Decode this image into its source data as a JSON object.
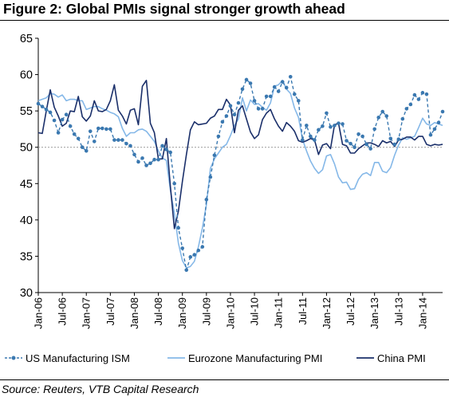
{
  "header": {
    "title": "Figure 2: Global PMIs signal stronger growth ahead"
  },
  "footer": {
    "source": "Source: Reuters, VTB Capital Research"
  },
  "chart_data": {
    "type": "line",
    "y_ticks": [
      "30",
      "35",
      "40",
      "45",
      "50",
      "55",
      "60",
      "65"
    ],
    "ylim": [
      30,
      65
    ],
    "x_ticks": [
      "Jan-06",
      "Jul-06",
      "Jan-07",
      "Jul-07",
      "Jan-08",
      "Jul-08",
      "Jan-09",
      "Jul-09",
      "Jan-10",
      "Jul-10",
      "Jan-11",
      "Jul-11",
      "Jan-12",
      "Jul-12",
      "Jan-13",
      "Jul-13",
      "Jan-14"
    ],
    "x_start": "Jan-06",
    "reference_line": 50,
    "legend_position": "bottom",
    "grid": false,
    "series": [
      {
        "name": "US Manufacturing ISM",
        "color": "#3a78b0",
        "style": "dashed-markers",
        "values": [
          56,
          55.6,
          55.2,
          54.8,
          53.7,
          52,
          53.8,
          54.5,
          52.9,
          51.8,
          51.2,
          50,
          49.5,
          52.2,
          50.8,
          52.6,
          52.6,
          52.5,
          52.5,
          51,
          51,
          51,
          50.5,
          50.2,
          49,
          48,
          48.5,
          47.5,
          47.8,
          48.3,
          48.3,
          50.2,
          49.7,
          49.3,
          45,
          38.9,
          36.1,
          33.1,
          34.9,
          35.2,
          35.8,
          36.3,
          42.8,
          45.9,
          48.9,
          51.5,
          53.5,
          54.3,
          55.7,
          54.5,
          56.1,
          58,
          59.3,
          58.8,
          56.4,
          55.3,
          55.3,
          57,
          57,
          58.3,
          57.7,
          59,
          58.2,
          59.7,
          57.3,
          56.4,
          51,
          53,
          51.5,
          51,
          52.4,
          52.9,
          54.7,
          52.8,
          53,
          53.3,
          53.2,
          50.9,
          50.5,
          50,
          51.8,
          51.5,
          50.4,
          49.8,
          52.5,
          54.1,
          54.9,
          54.3,
          51.2,
          50.4,
          51.1,
          53.9,
          55.3,
          55.9,
          57.2,
          56.6,
          57.5,
          57.3,
          51.7,
          52.5,
          53.4,
          54.9
        ]
      },
      {
        "name": "Eurozone Manufacturing PMI",
        "color": "#85b8e8",
        "style": "solid",
        "values": [
          56.4,
          56.6,
          56.8,
          57.4,
          57.3,
          56.9,
          57.2,
          56.4,
          56.6,
          56.6,
          56.4,
          56.4,
          55.2,
          55.4,
          55.6,
          55.6,
          55.3,
          55.1,
          54.8,
          54.6,
          54.2,
          52.6,
          51.5,
          52,
          52,
          52.4,
          52.5,
          52.2,
          51.5,
          50.8,
          49.5,
          48.5,
          48.2,
          44.1,
          40.9,
          36.8,
          34.4,
          33.4,
          33.6,
          34.3,
          36.3,
          38.9,
          42.1,
          47.1,
          48.4,
          49.2,
          50,
          50.4,
          51.6,
          53,
          53.9,
          56.8,
          55,
          56.5,
          55.9,
          56,
          55.5,
          55.1,
          56.1,
          58.4,
          58.6,
          59.2,
          58,
          57.4,
          55.4,
          54.1,
          51.1,
          49.5,
          48.1,
          47.1,
          46.4,
          46.9,
          48.8,
          49,
          47.7,
          45.9,
          45.1,
          45.2,
          44.2,
          44.3,
          45.6,
          46.3,
          46.5,
          46.1,
          47.9,
          47.9,
          46.7,
          46.5,
          47.2,
          48.9,
          50.3,
          51.3,
          51.1,
          51.3,
          51.5,
          52.7,
          54,
          53.2,
          53,
          53.4,
          53.2,
          53
        ]
      },
      {
        "name": "China PMI",
        "color": "#1a2f6a",
        "style": "solid",
        "values": [
          52,
          51.9,
          55,
          57.9,
          55.5,
          54.3,
          52.9,
          53.3,
          55,
          54.9,
          57,
          54.2,
          53.6,
          54.3,
          56.4,
          55,
          54.9,
          55.2,
          56.4,
          58.6,
          55.1,
          54.3,
          53.2,
          55.1,
          55.3,
          53.1,
          58.4,
          59.2,
          53.3,
          52,
          48.4,
          48.4,
          51.2,
          44.6,
          38.8,
          41.2,
          45.3,
          49,
          52.4,
          53.5,
          53.1,
          53.2,
          53.3,
          54,
          54.3,
          55.2,
          55.2,
          56.6,
          55.8,
          52,
          55.1,
          55.7,
          53.9,
          52.1,
          51.2,
          51.7,
          53.8,
          54.7,
          55.2,
          53.9,
          52.9,
          52.2,
          53.4,
          52.9,
          52.2,
          50.9,
          50.7,
          50.9,
          51.2,
          51,
          49,
          50.3,
          50.5,
          49.8,
          53.1,
          53.3,
          50.4,
          50.2,
          49.2,
          49.2,
          49.8,
          50.2,
          50.6,
          50.6,
          50.4,
          50.1,
          50.9,
          50.6,
          50.8,
          50.1,
          51,
          51.1,
          51.4,
          51.4,
          51,
          51.5,
          51.5,
          50.4,
          50.2,
          50.4,
          50.3,
          50.4
        ]
      }
    ]
  }
}
